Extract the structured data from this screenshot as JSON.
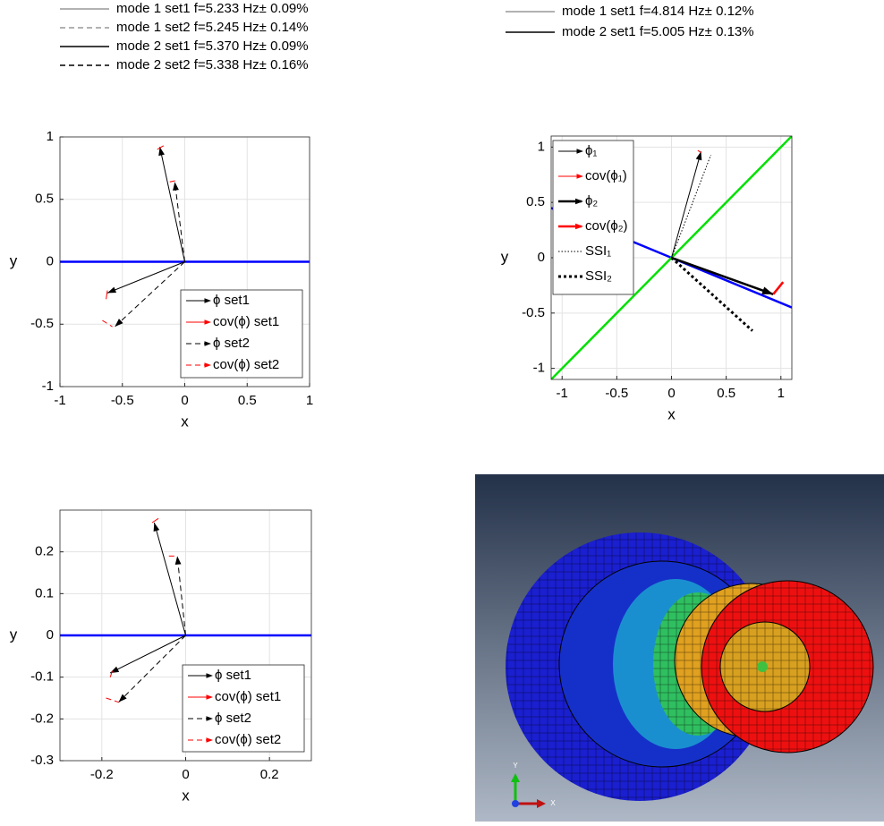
{
  "top_legends": [
    {
      "entries": [
        {
          "text": "mode 1 set1 f=5.233 Hz± 0.09%",
          "dash": "solid",
          "color": "#666666",
          "width": 1
        },
        {
          "text": "mode 1 set2 f=5.245 Hz± 0.14%",
          "dash": "dashed",
          "color": "#666666",
          "width": 1
        },
        {
          "text": "mode 2 set1 f=5.370 Hz± 0.09%",
          "dash": "solid",
          "color": "#000000",
          "width": 1.5
        },
        {
          "text": "mode 2 set2 f=5.338 Hz± 0.16%",
          "dash": "dashed",
          "color": "#000000",
          "width": 1.5
        }
      ]
    },
    {
      "entries": [
        {
          "text": "mode 1 set1 f=4.814 Hz± 0.12%",
          "dash": "solid",
          "color": "#666666",
          "width": 1
        },
        {
          "text": "mode 2 set1 f=5.005 Hz± 0.13%",
          "dash": "solid",
          "color": "#000000",
          "width": 1.5
        }
      ]
    }
  ],
  "chart_data": [
    {
      "type": "quiver",
      "x_label": "x",
      "y_label": "y",
      "xlim": [
        -1,
        1
      ],
      "ylim": [
        -1,
        1
      ],
      "xticks": [
        -1,
        -0.5,
        0,
        0.5,
        1
      ],
      "yticks": [
        -1,
        -0.5,
        0,
        0.5,
        1
      ],
      "grid": true,
      "legend": "lower right",
      "reference_lines": [
        {
          "color": "#0000ff",
          "x": [
            -1,
            1
          ],
          "y": [
            0,
            0
          ]
        }
      ],
      "series": [
        {
          "name": "ϕ set1",
          "color": "#000000",
          "dash": "solid",
          "width": 1,
          "arrow": true,
          "segments": [
            {
              "x": [
                0,
                -0.2
              ],
              "y": [
                0,
                0.92
              ]
            },
            {
              "x": [
                0,
                -0.62
              ],
              "y": [
                0,
                -0.25
              ]
            }
          ]
        },
        {
          "name": "cov(ϕ) set1",
          "color": "#ff0000",
          "dash": "solid",
          "width": 1,
          "arrow": false,
          "segments": [
            {
              "x": [
                -0.22,
                -0.17
              ],
              "y": [
                0.9,
                0.93
              ]
            },
            {
              "x": [
                -0.63,
                -0.62
              ],
              "y": [
                -0.3,
                -0.23
              ]
            }
          ]
        },
        {
          "name": "ϕ set2",
          "color": "#000000",
          "dash": "dashed",
          "width": 1,
          "arrow": true,
          "segments": [
            {
              "x": [
                0,
                -0.08
              ],
              "y": [
                0,
                0.64
              ]
            },
            {
              "x": [
                0,
                -0.56
              ],
              "y": [
                0,
                -0.52
              ]
            }
          ]
        },
        {
          "name": "cov(ϕ) set2",
          "color": "#ff0000",
          "dash": "dashed",
          "width": 1,
          "arrow": false,
          "segments": [
            {
              "x": [
                -0.12,
                -0.07
              ],
              "y": [
                0.64,
                0.65
              ]
            },
            {
              "x": [
                -0.66,
                -0.58
              ],
              "y": [
                -0.47,
                -0.52
              ]
            }
          ]
        }
      ]
    },
    {
      "type": "quiver",
      "x_label": "x",
      "y_label": "y",
      "xlim": [
        -1.1,
        1.1
      ],
      "ylim": [
        -1.1,
        1.1
      ],
      "xticks": [
        -1,
        -0.5,
        0,
        0.5,
        1
      ],
      "yticks": [
        -1,
        -0.5,
        0,
        0.5,
        1
      ],
      "grid": true,
      "legend": "upper left",
      "reference_lines": [
        {
          "color": "#0000ff",
          "x": [
            -1.1,
            1.1
          ],
          "y": [
            0.45,
            -0.45
          ]
        },
        {
          "color": "#00e000",
          "x": [
            -1.1,
            1.1
          ],
          "y": [
            -1.1,
            1.1
          ]
        }
      ],
      "series": [
        {
          "name": "ϕ₁",
          "color": "#000000",
          "dash": "solid",
          "width": 1,
          "arrow": true,
          "segments": [
            {
              "x": [
                0,
                0.27
              ],
              "y": [
                0,
                0.96
              ]
            }
          ]
        },
        {
          "name": "cov(ϕ₁)",
          "color": "#ff0000",
          "dash": "solid",
          "width": 1,
          "arrow": false,
          "segments": [
            {
              "x": [
                0.24,
                0.27
              ],
              "y": [
                0.97,
                0.95
              ]
            }
          ]
        },
        {
          "name": "ϕ₂",
          "color": "#000000",
          "dash": "solid",
          "width": 2.5,
          "arrow": true,
          "segments": [
            {
              "x": [
                0,
                0.93
              ],
              "y": [
                0,
                -0.33
              ]
            }
          ]
        },
        {
          "name": "cov(ϕ₂)",
          "color": "#ff0000",
          "dash": "solid",
          "width": 2.5,
          "arrow": false,
          "segments": [
            {
              "x": [
                0.93,
                1.02
              ],
              "y": [
                -0.33,
                -0.22
              ]
            }
          ]
        },
        {
          "name": "SSI₁",
          "color": "#000000",
          "dash": "dotted",
          "width": 1,
          "arrow": false,
          "segments": [
            {
              "x": [
                0,
                0.36
              ],
              "y": [
                0,
                0.93
              ]
            }
          ]
        },
        {
          "name": "SSI₂",
          "color": "#000000",
          "dash": "dotted",
          "width": 3,
          "arrow": false,
          "segments": [
            {
              "x": [
                0,
                0.74
              ],
              "y": [
                0,
                -0.66
              ]
            }
          ]
        }
      ]
    },
    {
      "type": "quiver",
      "x_label": "x",
      "y_label": "y",
      "xlim": [
        -0.3,
        0.3
      ],
      "ylim": [
        -0.3,
        0.3
      ],
      "xticks": [
        -0.2,
        0,
        0.2
      ],
      "yticks": [
        -0.3,
        -0.2,
        -0.1,
        0,
        0.1,
        0.2
      ],
      "grid": true,
      "legend": "lower right",
      "reference_lines": [
        {
          "color": "#0000ff",
          "x": [
            -0.3,
            0.3
          ],
          "y": [
            0,
            0
          ]
        }
      ],
      "series": [
        {
          "name": "ϕ set1",
          "color": "#000000",
          "dash": "solid",
          "width": 1,
          "arrow": true,
          "segments": [
            {
              "x": [
                0,
                -0.075
              ],
              "y": [
                0,
                0.27
              ]
            },
            {
              "x": [
                0,
                -0.18
              ],
              "y": [
                0,
                -0.09
              ]
            }
          ]
        },
        {
          "name": "cov(ϕ) set1",
          "color": "#ff0000",
          "dash": "solid",
          "width": 1,
          "arrow": false,
          "segments": [
            {
              "x": [
                -0.08,
                -0.065
              ],
              "y": [
                0.27,
                0.28
              ]
            },
            {
              "x": [
                -0.18,
                -0.175
              ],
              "y": [
                -0.1,
                -0.085
              ]
            }
          ]
        },
        {
          "name": "ϕ set2",
          "color": "#000000",
          "dash": "dashed",
          "width": 1,
          "arrow": true,
          "segments": [
            {
              "x": [
                0,
                -0.02
              ],
              "y": [
                0,
                0.19
              ]
            },
            {
              "x": [
                0,
                -0.16
              ],
              "y": [
                0,
                -0.16
              ]
            }
          ]
        },
        {
          "name": "cov(ϕ) set2",
          "color": "#ff0000",
          "dash": "dashed",
          "width": 1,
          "arrow": false,
          "segments": [
            {
              "x": [
                -0.04,
                -0.02
              ],
              "y": [
                0.19,
                0.19
              ]
            },
            {
              "x": [
                -0.19,
                -0.16
              ],
              "y": [
                -0.15,
                -0.16
              ]
            }
          ]
        }
      ]
    }
  ],
  "image_labels": {
    "y_axis": "Y",
    "x_axis": "X"
  }
}
